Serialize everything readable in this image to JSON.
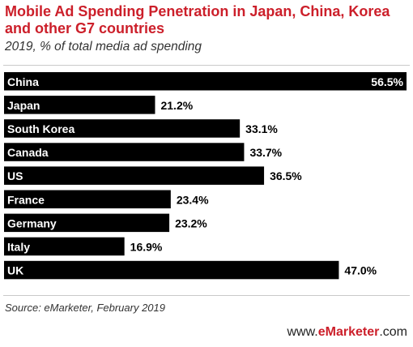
{
  "header": {
    "title": "Mobile Ad Spending Penetration in Japan, China, Korea and other G7 countries",
    "subtitle": "2019, % of total media ad spending"
  },
  "footer": {
    "source": "Source: eMarketer, February 2019",
    "brand_prefix": "www.",
    "brand_name": "eMarketer",
    "brand_suffix": ".com"
  },
  "colors": {
    "bar": "#000000",
    "label_inside": "#ffffff",
    "value_text": "#000000",
    "title": "#cc1f2a",
    "accent": "#cc1f2a"
  },
  "chart_data": {
    "type": "bar",
    "orientation": "horizontal",
    "categories": [
      "China",
      "Japan",
      "South Korea",
      "Canada",
      "US",
      "France",
      "Germany",
      "Italy",
      "UK"
    ],
    "values": [
      56.5,
      21.2,
      33.1,
      33.7,
      36.5,
      23.4,
      23.2,
      16.9,
      47.0
    ],
    "value_labels": [
      "56.5%",
      "21.2%",
      "33.1%",
      "33.7%",
      "36.5%",
      "23.4%",
      "23.2%",
      "16.9%",
      "47.0%"
    ],
    "unit": "%",
    "xlim": [
      0,
      56.5
    ],
    "grid": false,
    "legend": "none"
  }
}
